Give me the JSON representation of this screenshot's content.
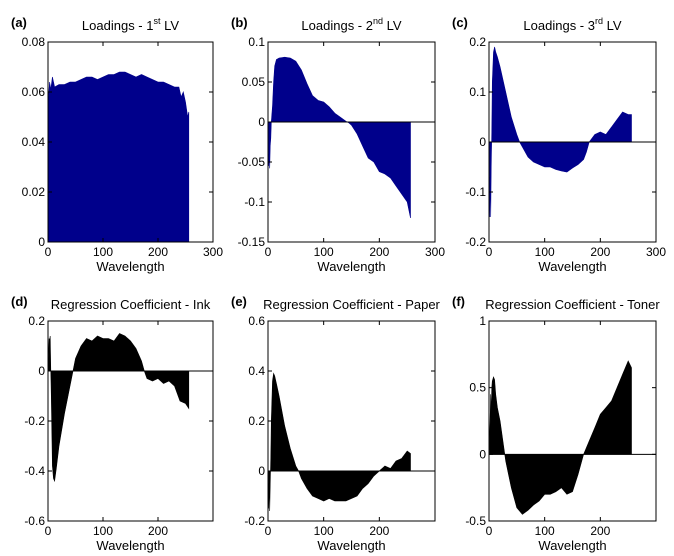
{
  "chart_data": [
    {
      "type": "area",
      "panel_label": "(a)",
      "title_main": "Loadings - 1",
      "title_sup": "st",
      "title_end": " LV",
      "xlabel": "Wavelength",
      "xlim": [
        0,
        300
      ],
      "ylim": [
        0,
        0.08
      ],
      "xticks": [
        0,
        100,
        200,
        300
      ],
      "xtick_labels": [
        "0",
        "100",
        "200",
        "300"
      ],
      "yticks": [
        0,
        0.02,
        0.04,
        0.06,
        0.08
      ],
      "ytick_labels": [
        "0",
        "0.02",
        "0.04",
        "0.06",
        "0.08"
      ],
      "fill_color": "#00008b",
      "x": [
        1,
        3,
        5,
        8,
        12,
        20,
        30,
        40,
        50,
        60,
        70,
        80,
        90,
        100,
        110,
        120,
        130,
        140,
        150,
        160,
        170,
        180,
        190,
        200,
        210,
        220,
        230,
        238,
        242,
        246,
        250,
        254,
        256
      ],
      "y": [
        0.058,
        0.064,
        0.061,
        0.066,
        0.062,
        0.063,
        0.063,
        0.064,
        0.064,
        0.065,
        0.066,
        0.066,
        0.065,
        0.066,
        0.067,
        0.067,
        0.068,
        0.068,
        0.067,
        0.066,
        0.067,
        0.066,
        0.065,
        0.064,
        0.064,
        0.063,
        0.062,
        0.062,
        0.058,
        0.06,
        0.056,
        0.05,
        0.052
      ]
    },
    {
      "type": "area",
      "panel_label": "(b)",
      "title_main": "Loadings - 2",
      "title_sup": "nd",
      "title_end": " LV",
      "xlabel": "Wavelength",
      "xlim": [
        0,
        300
      ],
      "ylim": [
        -0.15,
        0.1
      ],
      "xticks": [
        0,
        100,
        200,
        300
      ],
      "xtick_labels": [
        "0",
        "100",
        "200",
        "300"
      ],
      "yticks": [
        -0.15,
        -0.1,
        -0.05,
        0,
        0.05,
        0.1
      ],
      "ytick_labels": [
        "-0.15",
        "-0.1",
        "-0.05",
        "0",
        "0.05",
        "0.1"
      ],
      "fill_color": "#00008b",
      "x": [
        1,
        2,
        3,
        4,
        5,
        6,
        8,
        10,
        12,
        15,
        20,
        30,
        40,
        50,
        60,
        70,
        80,
        90,
        100,
        110,
        120,
        130,
        140,
        145,
        150,
        160,
        170,
        180,
        190,
        200,
        210,
        220,
        230,
        240,
        250,
        256
      ],
      "y": [
        -0.055,
        -0.04,
        -0.058,
        -0.03,
        -0.02,
        0.0,
        0.02,
        0.05,
        0.07,
        0.078,
        0.08,
        0.081,
        0.08,
        0.076,
        0.065,
        0.048,
        0.033,
        0.027,
        0.025,
        0.019,
        0.011,
        0.006,
        0.001,
        -0.001,
        -0.004,
        -0.015,
        -0.03,
        -0.045,
        -0.05,
        -0.062,
        -0.065,
        -0.07,
        -0.08,
        -0.09,
        -0.1,
        -0.12
      ]
    },
    {
      "type": "area",
      "panel_label": "(c)",
      "title_main": "Loadings - 3",
      "title_sup": "rd",
      "title_end": " LV",
      "xlabel": "Wavelength",
      "xlim": [
        0,
        300
      ],
      "ylim": [
        -0.2,
        0.2
      ],
      "xticks": [
        0,
        100,
        200,
        300
      ],
      "xtick_labels": [
        "0",
        "100",
        "200",
        "300"
      ],
      "yticks": [
        -0.2,
        -0.1,
        0,
        0.1,
        0.2
      ],
      "ytick_labels": [
        "-0.2",
        "-0.1",
        "0",
        "0.1",
        "0.2"
      ],
      "fill_color": "#00008b",
      "x": [
        1,
        2,
        3,
        4,
        5,
        6,
        8,
        10,
        12,
        15,
        20,
        30,
        40,
        50,
        55,
        60,
        70,
        80,
        90,
        100,
        110,
        120,
        130,
        140,
        150,
        160,
        170,
        175,
        180,
        190,
        200,
        210,
        220,
        230,
        240,
        250,
        256
      ],
      "y": [
        -0.15,
        -0.07,
        -0.15,
        -0.05,
        0.02,
        0.12,
        0.18,
        0.19,
        0.18,
        0.17,
        0.15,
        0.1,
        0.05,
        0.015,
        0.0,
        -0.01,
        -0.03,
        -0.04,
        -0.045,
        -0.05,
        -0.05,
        -0.055,
        -0.058,
        -0.06,
        -0.052,
        -0.045,
        -0.035,
        -0.02,
        0.0,
        0.015,
        0.02,
        0.015,
        0.03,
        0.045,
        0.06,
        0.055,
        0.055
      ]
    },
    {
      "type": "area",
      "panel_label": "(d)",
      "title_main": "Regression Coefficient - Ink",
      "title_sup": "",
      "title_end": "",
      "xlabel": "Wavelength",
      "xlim": [
        0,
        300
      ],
      "ylim": [
        -0.6,
        0.2
      ],
      "xticks": [
        0,
        100,
        200
      ],
      "xtick_labels": [
        "0",
        "100",
        "200"
      ],
      "yticks": [
        -0.6,
        -0.4,
        -0.2,
        0,
        0.2
      ],
      "ytick_labels": [
        "-0.6",
        "-0.4",
        "-0.2",
        "0",
        "0.2"
      ],
      "fill_color": "#000000",
      "x": [
        1,
        2,
        3,
        4,
        5,
        6,
        8,
        10,
        12,
        15,
        20,
        30,
        40,
        50,
        60,
        70,
        80,
        90,
        100,
        110,
        120,
        130,
        140,
        150,
        160,
        170,
        175,
        180,
        190,
        200,
        210,
        220,
        230,
        240,
        250,
        256
      ],
      "y": [
        0.05,
        0.13,
        0.12,
        0.14,
        0.0,
        -0.1,
        -0.38,
        -0.43,
        -0.44,
        -0.39,
        -0.3,
        -0.17,
        -0.06,
        0.05,
        0.1,
        0.13,
        0.12,
        0.14,
        0.13,
        0.13,
        0.12,
        0.15,
        0.14,
        0.12,
        0.09,
        0.04,
        0.0,
        -0.03,
        -0.04,
        -0.03,
        -0.05,
        -0.04,
        -0.06,
        -0.12,
        -0.13,
        -0.15
      ]
    },
    {
      "type": "area",
      "panel_label": "(e)",
      "title_main": "Regression Coefficient - Paper",
      "title_sup": "",
      "title_end": "",
      "xlabel": "Wavelength",
      "xlim": [
        0,
        300
      ],
      "ylim": [
        -0.2,
        0.6
      ],
      "xticks": [
        0,
        100,
        200
      ],
      "xtick_labels": [
        "0",
        "100",
        "200"
      ],
      "yticks": [
        -0.2,
        0,
        0.2,
        0.4,
        0.6
      ],
      "ytick_labels": [
        "-0.2",
        "0",
        "0.2",
        "0.4",
        "0.6"
      ],
      "fill_color": "#000000",
      "x": [
        1,
        2,
        3,
        4,
        5,
        6,
        8,
        10,
        12,
        15,
        20,
        30,
        40,
        50,
        55,
        60,
        70,
        80,
        90,
        100,
        110,
        120,
        130,
        140,
        150,
        160,
        170,
        180,
        190,
        200,
        210,
        220,
        230,
        240,
        250,
        256
      ],
      "y": [
        -0.15,
        -0.05,
        -0.16,
        -0.05,
        0.05,
        0.2,
        0.36,
        0.39,
        0.38,
        0.35,
        0.3,
        0.18,
        0.09,
        0.02,
        0.0,
        -0.03,
        -0.07,
        -0.1,
        -0.11,
        -0.12,
        -0.11,
        -0.12,
        -0.12,
        -0.12,
        -0.11,
        -0.1,
        -0.07,
        -0.05,
        -0.02,
        0.0,
        0.02,
        0.01,
        0.04,
        0.05,
        0.08,
        0.07
      ]
    },
    {
      "type": "area",
      "panel_label": "(f)",
      "title_main": "Regression Coefficient - Toner",
      "title_sup": "",
      "title_end": "",
      "xlabel": "Wavelength",
      "xlim": [
        0,
        300
      ],
      "ylim": [
        -0.5,
        1
      ],
      "xticks": [
        0,
        100,
        200
      ],
      "xtick_labels": [
        "0",
        "100",
        "200"
      ],
      "yticks": [
        -0.5,
        0,
        0.5,
        1
      ],
      "ytick_labels": [
        "-0.5",
        "0",
        "0.5",
        "1"
      ],
      "fill_color": "#000000",
      "x": [
        1,
        2,
        3,
        4,
        5,
        6,
        8,
        10,
        12,
        15,
        20,
        30,
        40,
        50,
        60,
        70,
        80,
        90,
        100,
        110,
        120,
        130,
        140,
        150,
        160,
        170,
        180,
        190,
        200,
        210,
        220,
        230,
        240,
        250,
        256
      ],
      "y": [
        0.12,
        0.25,
        0.45,
        0.3,
        0.5,
        0.55,
        0.58,
        0.56,
        0.45,
        0.35,
        0.25,
        -0.05,
        -0.25,
        -0.4,
        -0.45,
        -0.42,
        -0.38,
        -0.35,
        -0.3,
        -0.3,
        -0.28,
        -0.25,
        -0.3,
        -0.28,
        -0.15,
        0.0,
        0.1,
        0.2,
        0.3,
        0.35,
        0.4,
        0.5,
        0.6,
        0.7,
        0.65
      ]
    }
  ]
}
